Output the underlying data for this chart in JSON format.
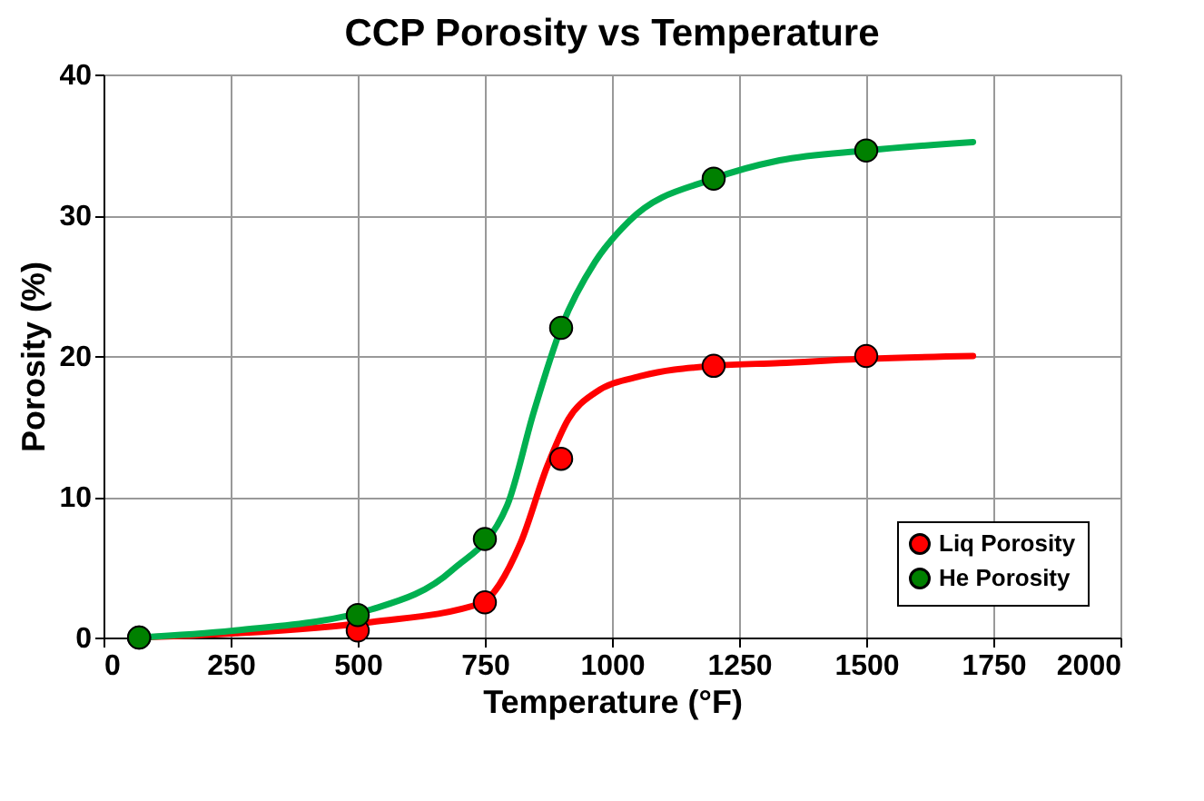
{
  "chart_data": {
    "type": "scatter",
    "title": "CCP Porosity vs Temperature",
    "xlabel": "Temperature  (°F)",
    "ylabel": "Porosity (%)",
    "xlim": [
      0,
      2000
    ],
    "xticks": [
      0,
      250,
      500,
      750,
      1000,
      1250,
      1500,
      1750,
      2000
    ],
    "ylim": [
      0,
      40
    ],
    "yticks": [
      0,
      10,
      20,
      30,
      40
    ],
    "grid": true,
    "legend": "bottom right",
    "series": [
      {
        "type": "line",
        "color": "#ff0000",
        "marker": "none",
        "line_style": "solid",
        "x": [
          70,
          259,
          527,
          740,
          820,
          873,
          914,
          967,
          1060,
          1200,
          1330,
          1500,
          1710
        ],
        "values": [
          0,
          0.3,
          1.1,
          2.4,
          6.7,
          12.2,
          15.5,
          17.4,
          18.6,
          19.3,
          19.5,
          19.8,
          20.0
        ]
      },
      {
        "type": "line",
        "color": "#00b050",
        "marker": "none",
        "line_style": "solid",
        "x": [
          70,
          259,
          527,
          686,
          794,
          846,
          901,
          967,
          1034,
          1200,
          1330,
          1500,
          1710
        ],
        "values": [
          0,
          0.5,
          2.0,
          4.8,
          9.4,
          16,
          22.1,
          26.7,
          29.6,
          32.6,
          33.9,
          34.6,
          35.2
        ]
      },
      {
        "name": "Liq Porosity",
        "color": "#ff0000",
        "marker": "circle",
        "x": [
          70,
          500,
          750,
          900,
          1200,
          1500
        ],
        "values": [
          0,
          0.5,
          2.5,
          12.7,
          19.3,
          20.0
        ]
      },
      {
        "name": "He Porosity",
        "color": "#008000",
        "marker": "circle",
        "x": [
          70,
          500,
          750,
          900,
          1200,
          1500
        ],
        "values": [
          0,
          1.6,
          7.0,
          22.0,
          32.6,
          34.6
        ]
      }
    ]
  }
}
